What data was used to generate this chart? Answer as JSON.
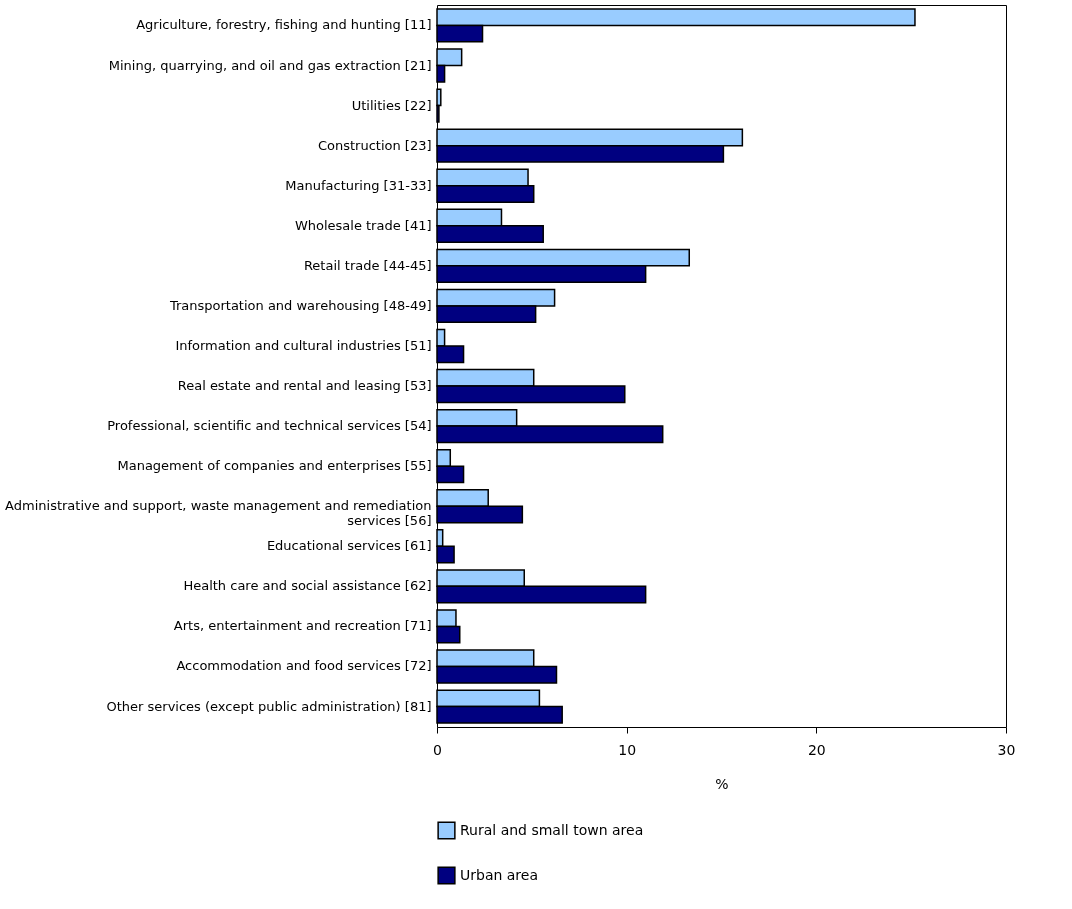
{
  "chart_data": {
    "type": "bar",
    "orientation": "horizontal",
    "xlabel": "%",
    "legend": "bottom",
    "categories": [
      "Agriculture, forestry, fishing and hunting [11]",
      "Mining, quarrying, and oil and gas extraction [21]",
      "Utilities [22]",
      "Construction [23]",
      "Manufacturing [31-33]",
      "Wholesale trade [41]",
      "Retail trade [44-45]",
      "Transportation and warehousing [48-49]",
      "Information and cultural industries [51]",
      "Real estate and rental and leasing [53]",
      "Professional, scientific and technical services [54]",
      "Management of companies and enterprises [55]",
      "Administrative and support, waste management and remediation services [56]",
      "Educational services [61]",
      "Health care and social assistance [62]",
      "Arts, entertainment and recreation [71]",
      "Accommodation and food services [72]",
      "Other services (except public administration) [81]"
    ],
    "series": [
      {
        "name": "Rural and small town area",
        "color": "#99ccff",
        "values": [
          25.2,
          1.3,
          0.2,
          16.1,
          4.8,
          3.4,
          13.3,
          6.2,
          0.4,
          5.1,
          4.2,
          0.7,
          2.7,
          0.3,
          4.6,
          1.0,
          5.1,
          5.4
        ]
      },
      {
        "name": "Urban area",
        "color": "#000080",
        "values": [
          2.4,
          0.4,
          0.1,
          15.1,
          5.1,
          5.6,
          11.0,
          5.2,
          1.4,
          9.9,
          11.9,
          1.4,
          4.5,
          0.9,
          11.0,
          1.2,
          6.3,
          6.6
        ]
      }
    ],
    "xlim": [
      0,
      30
    ],
    "xticks": [
      0,
      10,
      20,
      30
    ],
    "grid": false
  }
}
